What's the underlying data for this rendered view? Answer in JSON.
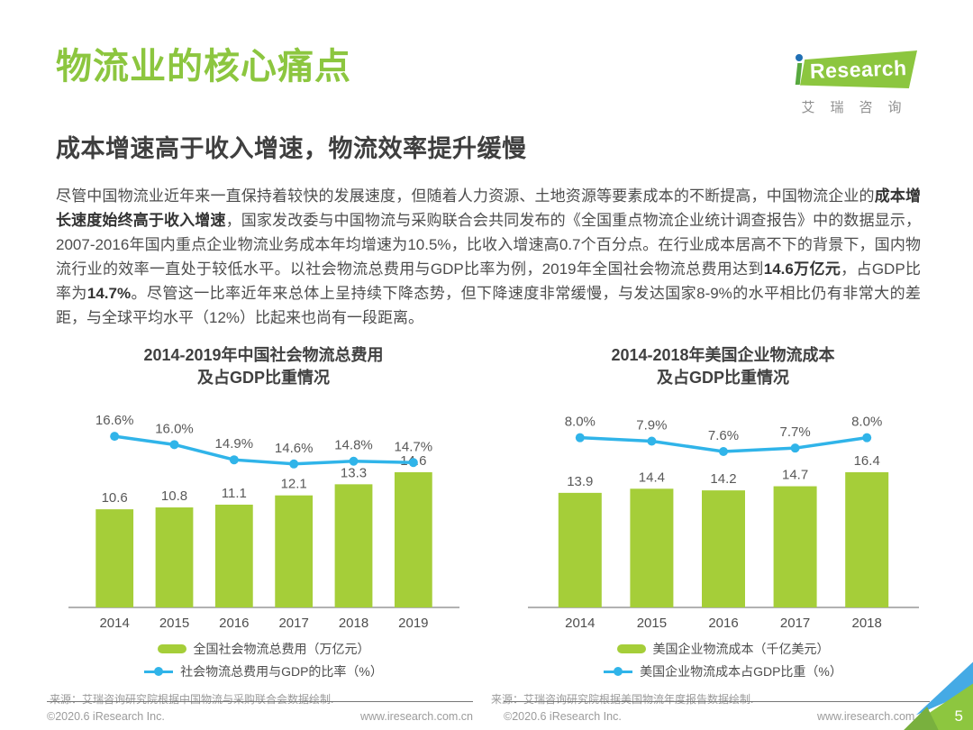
{
  "page": {
    "title": "物流业的核心痛点",
    "subtitle": "成本增速高于收入增速，物流效率提升缓慢",
    "page_number": "5"
  },
  "logo": {
    "brand": "Research",
    "brand_cn": "艾瑞咨询"
  },
  "paragraph": {
    "segments": [
      {
        "text": "尽管中国物流业近年来一直保持着较快的发展速度，但随着人力资源、土地资源等要素成本的不断提高，中国物流企业的",
        "bold": false
      },
      {
        "text": "成本增长速度始终高于收入增速",
        "bold": true
      },
      {
        "text": "，国家发改委与中国物流与采购联合会共同发布的《全国重点物流企业统计调查报告》中的数据显示，2007-2016年国内重点企业物流业务成本年均增速为10.5%，比收入增速高0.7个百分点。在行业成本居高不下的背景下，国内物流行业的效率一直处于较低水平。以社会物流总费用与GDP比率为例，2019年全国社会物流总费用达到",
        "bold": false
      },
      {
        "text": "14.6万亿元",
        "bold": true
      },
      {
        "text": "，占GDP比率为",
        "bold": false
      },
      {
        "text": "14.7%",
        "bold": true
      },
      {
        "text": "。尽管这一比率近年来总体上呈持续下降态势，但下降速度非常缓慢，与发达国家8-9%的水平相比仍有非常大的差距，与全球平均水平（12%）比起来也尚有一段距离。",
        "bold": false
      }
    ]
  },
  "chart_data": [
    {
      "type": "bar",
      "title_line1": "2014-2019年中国社会物流总费用",
      "title_line2": "及占GDP比重情况",
      "categories": [
        "2014",
        "2015",
        "2016",
        "2017",
        "2018",
        "2019"
      ],
      "series": [
        {
          "name": "全国社会物流总费用（万亿元）",
          "type": "bar",
          "values": [
            10.6,
            10.8,
            11.1,
            12.1,
            13.3,
            14.6
          ],
          "color": "#A5CE39"
        },
        {
          "name": "社会物流总费用与GDP的比率（%）",
          "type": "line",
          "values": [
            16.6,
            16.0,
            14.9,
            14.6,
            14.8,
            14.7
          ],
          "color": "#30B4E9"
        }
      ],
      "line_ylim": [
        14.0,
        17.0
      ],
      "grid": "off",
      "legend_position": "bottom",
      "source": "来源：艾瑞咨询研究院根据中国物流与采购联合会数据绘制."
    },
    {
      "type": "bar",
      "title_line1": "2014-2018年美国企业物流成本",
      "title_line2": "及占GDP比重情况",
      "categories": [
        "2014",
        "2015",
        "2016",
        "2017",
        "2018"
      ],
      "series": [
        {
          "name": "美国企业物流成本（千亿美元）",
          "type": "bar",
          "values": [
            13.9,
            14.4,
            14.2,
            14.7,
            16.4
          ],
          "color": "#A5CE39"
        },
        {
          "name": "美国企业物流成本占GDP比重（%）",
          "type": "line",
          "values": [
            8.0,
            7.9,
            7.6,
            7.7,
            8.0
          ],
          "color": "#30B4E9"
        }
      ],
      "line_ylim": [
        7.0,
        8.2
      ],
      "grid": "off",
      "legend_position": "bottom",
      "source": "来源：艾瑞咨询研究院根据美国物流年度报告数据绘制."
    }
  ],
  "footer": {
    "columns": [
      {
        "copyright": "©2020.6 iResearch Inc.",
        "url": "www.iresearch.com.cn"
      },
      {
        "copyright": "©2020.6 iResearch Inc.",
        "url": "www.iresearch.com.cn"
      }
    ]
  },
  "colors": {
    "brand_green": "#8CC63F",
    "bar_green": "#A5CE39",
    "line_blue": "#30B4E9",
    "logo_dot_blue": "#2170B5",
    "corner_blue": "#45AAE5"
  }
}
